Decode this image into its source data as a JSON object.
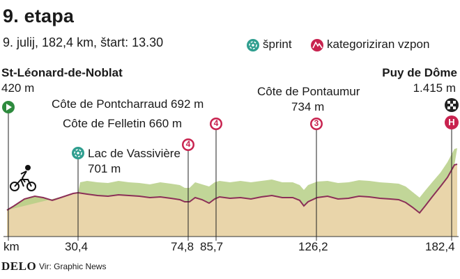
{
  "header": {
    "title": "9. etapa",
    "subtitle": "9. julij, 182,4 km, štart: 13.30"
  },
  "legend": {
    "sprint_label": "šprint",
    "climb_label": "kategoriziran vzpon",
    "sprint_color": "#2f9e8f",
    "climb_color": "#c8234f"
  },
  "start": {
    "name": "St-Léonard-de-Noblat",
    "elevation": "420 m"
  },
  "finish": {
    "name": "Puy de Dôme",
    "elevation": "1.415 m",
    "category": "H"
  },
  "sprint": {
    "name": "Lac de Vassivière",
    "elevation": "701 m"
  },
  "climbs": [
    {
      "name": "Côte de Felletin 660 m",
      "category": "4"
    },
    {
      "name": "Côte de Pontcharraud 692 m",
      "category": "4"
    },
    {
      "name": "Côte de Pontaumur",
      "elevation": "734 m",
      "category": "3"
    }
  ],
  "axis": {
    "unit_label": "km",
    "ticks": [
      "30,4",
      "74,8",
      "85,7",
      "126,2",
      "182,4"
    ]
  },
  "source": {
    "logo": "DELO",
    "text": "Vir: Graphic News"
  },
  "colors": {
    "terrain": "#e7d2a6",
    "terrain_top": "#a9c878",
    "profile_line": "#8b2f57"
  }
}
